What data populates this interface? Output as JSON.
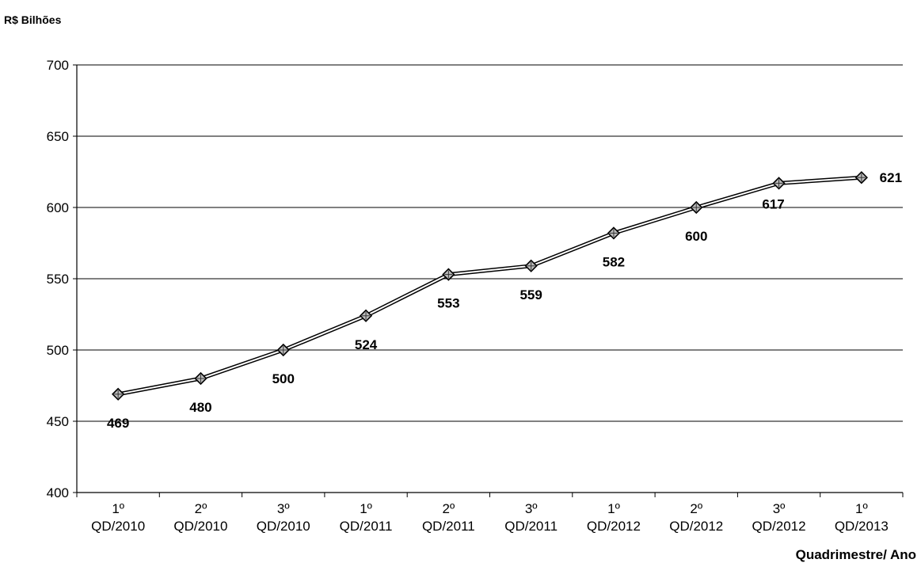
{
  "chart_data": {
    "type": "line",
    "title": "",
    "ylabel": "R$ Bilhões",
    "xlabel": "Quadrimestre/ Ano",
    "categories": [
      [
        "1º",
        "QD/2010"
      ],
      [
        "2º",
        "QD/2010"
      ],
      [
        "3º",
        "QD/2010"
      ],
      [
        "1º",
        "QD/2011"
      ],
      [
        "2º",
        "QD/2011"
      ],
      [
        "3º",
        "QD/2011"
      ],
      [
        "1º",
        "QD/2012"
      ],
      [
        "2º",
        "QD/2012"
      ],
      [
        "3º",
        "QD/2012"
      ],
      [
        "1º",
        "QD/2013"
      ]
    ],
    "series": [
      {
        "values": [
          469,
          480,
          500,
          524,
          553,
          559,
          582,
          600,
          617,
          621
        ],
        "color": "#000000",
        "marker": "diamond"
      }
    ],
    "ylim": [
      400,
      700
    ],
    "yticks": [
      400,
      450,
      500,
      550,
      600,
      650,
      700
    ],
    "grid": true,
    "legend": "none"
  }
}
